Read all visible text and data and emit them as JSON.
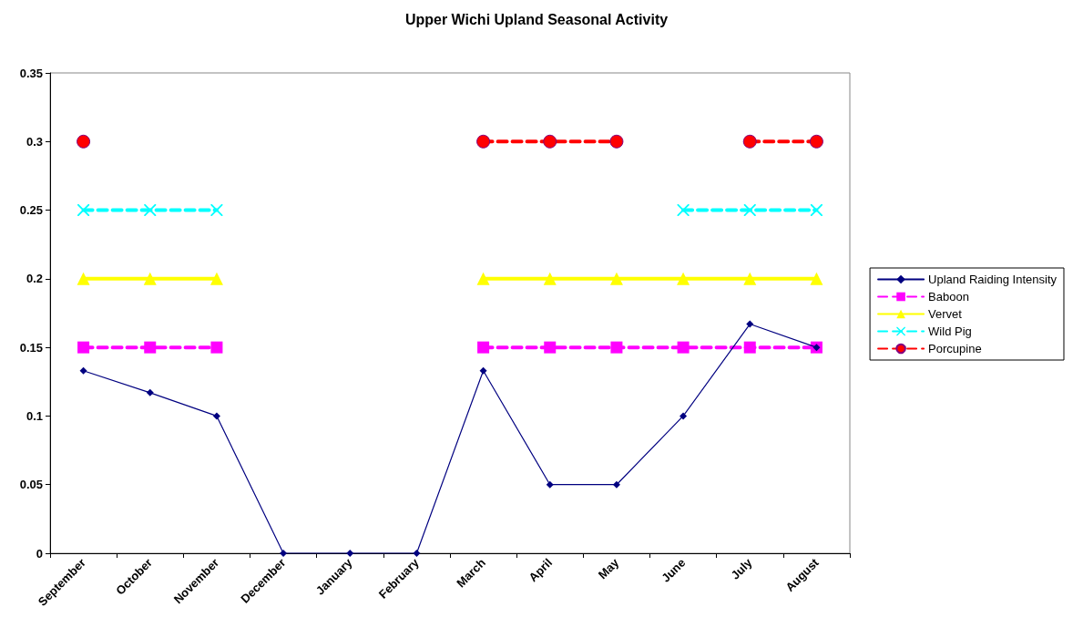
{
  "chart_data": {
    "type": "line",
    "title": "Upper Wichi Upland Seasonal Activity",
    "categories": [
      "September",
      "October",
      "November",
      "December",
      "January",
      "February",
      "March",
      "April",
      "May",
      "June",
      "July",
      "August"
    ],
    "series": [
      {
        "name": "Upland Raiding Intensity",
        "color": "#000080",
        "marker": "diamond",
        "line_style": "solid",
        "values": [
          0.133,
          0.117,
          0.1,
          0,
          0,
          0,
          0.133,
          0.05,
          0.05,
          0.1,
          0.167,
          0.15
        ]
      },
      {
        "name": "Baboon",
        "color": "#ff00ff",
        "marker": "square",
        "line_style": "dashed",
        "values": [
          0.15,
          0.15,
          0.15,
          null,
          null,
          null,
          0.15,
          0.15,
          0.15,
          0.15,
          0.15,
          0.15
        ]
      },
      {
        "name": "Vervet",
        "color": "#ffff00",
        "marker": "triangle",
        "line_style": "solid",
        "values": [
          0.2,
          0.2,
          0.2,
          null,
          null,
          null,
          0.2,
          0.2,
          0.2,
          0.2,
          0.2,
          0.2
        ]
      },
      {
        "name": "Wild Pig",
        "color": "#00ffff",
        "marker": "cross",
        "line_style": "dashed",
        "values": [
          0.25,
          0.25,
          0.25,
          null,
          null,
          null,
          null,
          null,
          null,
          0.25,
          0.25,
          0.25
        ]
      },
      {
        "name": "Porcupine",
        "color": "#ff0000",
        "marker": "circle",
        "line_style": "dashed",
        "values": [
          0.3,
          null,
          null,
          null,
          null,
          null,
          0.3,
          0.3,
          0.3,
          null,
          0.3,
          0.3
        ]
      }
    ],
    "ylim": [
      0,
      0.35
    ],
    "yticks": [
      0,
      0.05,
      0.1,
      0.15,
      0.2,
      0.25,
      0.3,
      0.35
    ],
    "grid": false,
    "legend": "right"
  }
}
